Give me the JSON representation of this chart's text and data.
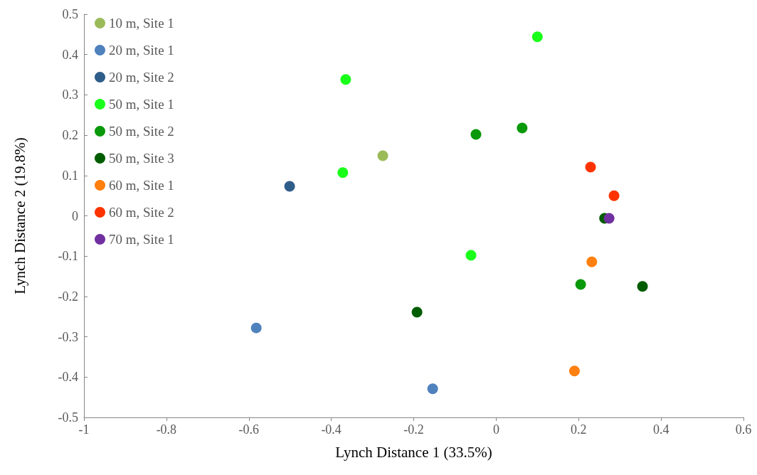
{
  "chart_data": {
    "type": "scatter",
    "xlabel": "Lynch Distance 1 (33.5%)",
    "ylabel": "Lynch Distance 2 (19.8%)",
    "xlim": [
      -1,
      0.6
    ],
    "xticks": [
      -1,
      -0.8,
      -0.6,
      -0.4,
      -0.2,
      0,
      0.2,
      0.4,
      0.6
    ],
    "ylim": [
      -0.5,
      0.5
    ],
    "yticks": [
      -0.5,
      -0.4,
      -0.3,
      -0.2,
      -0.1,
      0,
      0.1,
      0.2,
      0.3,
      0.4,
      0.5
    ],
    "grid": false,
    "legend": "top left",
    "marker": "circle",
    "series": [
      {
        "name": "10 m, Site 1",
        "color": "#9bbb59",
        "x": [
          -0.275
        ],
        "values": [
          0.149
        ]
      },
      {
        "name": "20 m, Site 1",
        "color": "#4f81bd",
        "x": [
          -0.582,
          -0.154
        ],
        "values": [
          -0.278,
          -0.429
        ]
      },
      {
        "name": "20 m, Site 2",
        "color": "#2f5d8a",
        "x": [
          -0.501
        ],
        "values": [
          0.073
        ]
      },
      {
        "name": "50 m, Site 1",
        "color": "#1aff1a",
        "x": [
          0.1,
          -0.365,
          -0.372,
          -0.061
        ],
        "values": [
          0.444,
          0.338,
          0.107,
          -0.098
        ]
      },
      {
        "name": "50 m, Site 2",
        "color": "#0a990a",
        "x": [
          -0.049,
          0.063,
          0.205
        ],
        "values": [
          0.202,
          0.218,
          -0.17
        ]
      },
      {
        "name": "50 m, Site 3",
        "color": "#005c00",
        "x": [
          0.263,
          0.355,
          -0.192
        ],
        "values": [
          -0.006,
          -0.175,
          -0.239
        ]
      },
      {
        "name": "60 m, Site 1",
        "color": "#ff7f0f",
        "x": [
          0.232,
          0.19
        ],
        "values": [
          -0.114,
          -0.385
        ]
      },
      {
        "name": "60 m, Site 2",
        "color": "#ff3300",
        "x": [
          0.229,
          0.286
        ],
        "values": [
          0.121,
          0.05
        ]
      },
      {
        "name": "70 m, Site 1",
        "color": "#7030a0",
        "x": [
          0.274
        ],
        "values": [
          -0.006
        ]
      }
    ]
  }
}
